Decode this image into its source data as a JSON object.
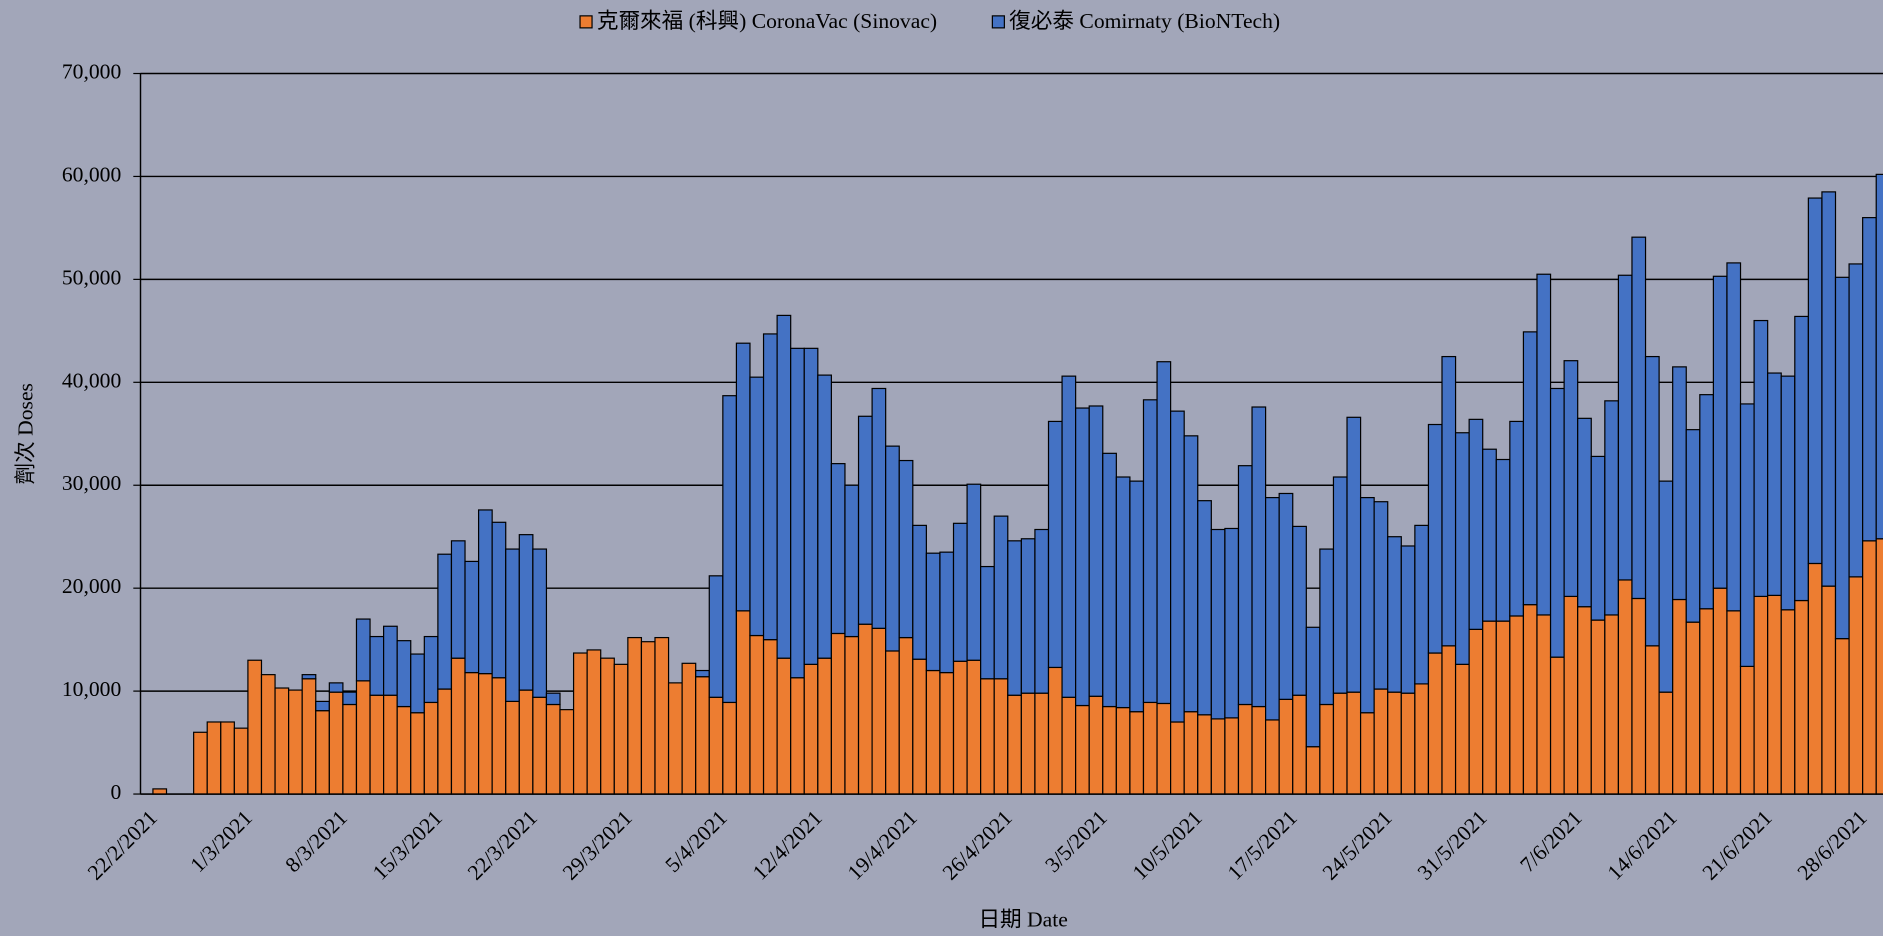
{
  "chart_data": {
    "type": "stacked_bar",
    "x_label": "日期 Date",
    "y_label": "劑次 Doses",
    "categories": [
      "22/2/2021",
      null,
      null,
      null,
      null,
      null,
      null,
      "1/3/2021",
      null,
      null,
      null,
      null,
      null,
      null,
      "8/3/2021",
      null,
      null,
      null,
      null,
      null,
      null,
      "15/3/2021",
      null,
      null,
      null,
      null,
      null,
      null,
      "22/3/2021",
      null,
      null,
      null,
      null,
      null,
      null,
      "29/3/2021",
      null,
      null,
      null,
      null,
      null,
      null,
      "5/4/2021",
      null,
      null,
      null,
      null,
      null,
      null,
      "12/4/2021",
      null,
      null,
      null,
      null,
      null,
      null,
      "19/4/2021",
      null,
      null,
      null,
      null,
      null,
      null,
      "26/4/2021",
      null,
      null,
      null,
      null,
      null,
      null,
      "3/5/2021",
      null,
      null,
      null,
      null,
      null,
      null,
      "10/5/2021",
      null,
      null,
      null,
      null,
      null,
      null,
      "17/5/2021",
      null,
      null,
      null,
      null,
      null,
      null,
      "24/5/2021",
      null,
      null,
      null,
      null,
      null,
      null,
      "31/5/2021",
      null,
      null,
      null,
      null,
      null,
      null,
      "7/6/2021",
      null,
      null,
      null,
      null,
      null,
      null,
      "14/6/2021",
      null,
      null,
      null,
      null,
      null,
      null,
      "21/6/2021",
      null,
      null,
      null,
      null,
      null,
      null,
      "28/6/2021",
      null
    ],
    "series": [
      {
        "name": "克爾來福 (科興) CoronaVac (Sinovac)",
        "color": "#ed7d31",
        "values": [
          500,
          0,
          0,
          6000,
          7000,
          7000,
          6400,
          13000,
          11600,
          10300,
          10100,
          11200,
          8100,
          9900,
          8700,
          11000,
          9600,
          9600,
          8500,
          7900,
          8900,
          10200,
          13200,
          11800,
          11700,
          11300,
          9000,
          10100,
          9400,
          8700,
          8200,
          13700,
          14000,
          13200,
          12600,
          15200,
          14800,
          15200,
          10800,
          12700,
          11400,
          9400,
          8900,
          17800,
          15400,
          15000,
          13200,
          11300,
          12600,
          13200,
          15600,
          15300,
          16500,
          16100,
          13900,
          15200,
          13100,
          12000,
          11800,
          12900,
          13000,
          11200,
          11200,
          9600,
          9800,
          9800,
          12300,
          9400,
          8600,
          9500,
          8500,
          8400,
          8000,
          8900,
          8800,
          7000,
          8000,
          7700,
          7300,
          7400,
          8700,
          8500,
          7200,
          9200,
          9600,
          4600,
          8700,
          9800,
          9900,
          7900,
          10200,
          9900,
          9800,
          10700,
          13700,
          14400,
          12600,
          16000,
          16800,
          16800,
          17300,
          18400,
          17400,
          13300,
          19200,
          18200,
          16900,
          17400,
          20800,
          19000,
          14400,
          9900,
          18900,
          16700,
          18000,
          20000,
          17800,
          12400,
          19200,
          19300,
          17900,
          18800,
          22400,
          20200,
          15100,
          21100,
          24600,
          24800
        ]
      },
      {
        "name": "復必泰 Comirnaty (BioNTech)",
        "color": "#4472c4",
        "values": [
          0,
          0,
          0,
          0,
          0,
          0,
          0,
          0,
          0,
          0,
          0,
          400,
          900,
          900,
          1200,
          6000,
          5700,
          6700,
          6400,
          5700,
          6400,
          13100,
          11400,
          10800,
          15900,
          15100,
          14800,
          15100,
          14400,
          1100,
          0,
          0,
          0,
          0,
          0,
          0,
          0,
          0,
          0,
          0,
          600,
          11800,
          29800,
          26000,
          25100,
          29700,
          33300,
          32000,
          30700,
          27500,
          16500,
          14700,
          20200,
          23300,
          19900,
          17200,
          13000,
          11400,
          11700,
          13400,
          17100,
          10900,
          15800,
          15000,
          15000,
          15900,
          23900,
          31200,
          28900,
          28200,
          24600,
          22400,
          22400,
          29400,
          33200,
          30200,
          26800,
          20800,
          18400,
          18400,
          23200,
          29100,
          21600,
          20000,
          16400,
          11600,
          15100,
          21000,
          26700,
          20900,
          18200,
          15100,
          14300,
          15400,
          22200,
          28100,
          22500,
          20400,
          16700,
          15700,
          18900,
          26500,
          33100,
          26100,
          22900,
          18300,
          15900,
          20800,
          29600,
          35100,
          28100,
          20500,
          22600,
          18700,
          20800,
          30300,
          33800,
          25500,
          26800,
          21600,
          22700,
          27600,
          35500,
          38300,
          35100,
          30400,
          31400,
          35400
        ]
      }
    ],
    "ylim": [
      0,
      70000
    ],
    "yticks": [
      0,
      {
        "value": 10000,
        "label": "10,000"
      },
      {
        "value": 20000,
        "label": "20,000"
      },
      {
        "value": 30000,
        "label": "30,000"
      },
      {
        "value": 40000,
        "label": "40,000"
      },
      {
        "value": 50000,
        "label": "50,000"
      },
      {
        "value": 60000,
        "label": "60,000"
      },
      {
        "value": 70000,
        "label": "70,000"
      }
    ],
    "grid": true,
    "legend": "top"
  }
}
